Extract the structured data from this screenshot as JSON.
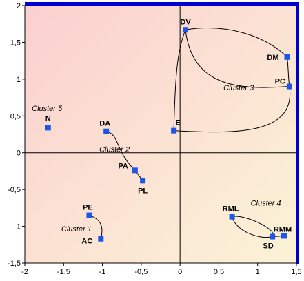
{
  "chart_data": {
    "type": "scatter",
    "xlim": [
      -2,
      1.5
    ],
    "ylim": [
      -1.5,
      2
    ],
    "x_ticks": [
      "-2",
      "-1,5",
      "-1",
      "-0,5",
      "0",
      "0,5",
      "1",
      "1,5"
    ],
    "y_ticks": [
      "2",
      "1,5",
      "1",
      "0,5",
      "0",
      "-0,5",
      "-1",
      "-1,5"
    ],
    "x_tick_values": [
      -2,
      -1.5,
      -1,
      -0.5,
      0,
      0.5,
      1,
      1.5
    ],
    "y_tick_values": [
      2,
      1.5,
      1,
      0.5,
      0,
      -0.5,
      -1,
      -1.5
    ],
    "grid": false,
    "marker_color": "#1f55e6",
    "background_gradient": [
      "#fbd0d0",
      "#fbf3d6"
    ],
    "points": [
      {
        "label": "DV",
        "x": 0.07,
        "y": 1.67
      },
      {
        "label": "DM",
        "x": 1.38,
        "y": 1.3
      },
      {
        "label": "PC",
        "x": 1.41,
        "y": 0.9
      },
      {
        "label": "E",
        "x": -0.08,
        "y": 0.3
      },
      {
        "label": "N",
        "x": -1.7,
        "y": 0.34
      },
      {
        "label": "DA",
        "x": -0.95,
        "y": 0.29
      },
      {
        "label": "PA",
        "x": -0.58,
        "y": -0.24
      },
      {
        "label": "PL",
        "x": -0.48,
        "y": -0.38
      },
      {
        "label": "PE",
        "x": -1.17,
        "y": -0.85
      },
      {
        "label": "AC",
        "x": -1.02,
        "y": -1.17
      },
      {
        "label": "RML",
        "x": 0.67,
        "y": -0.87
      },
      {
        "label": "SD",
        "x": 1.19,
        "y": -1.14
      },
      {
        "label": "RMM",
        "x": 1.34,
        "y": -1.13
      }
    ],
    "clusters": [
      {
        "label": "Cluster 1",
        "x": -1.53,
        "y": -1.07
      },
      {
        "label": "Cluster 2",
        "x": -1.04,
        "y": 0.01
      },
      {
        "label": "Cluster 3",
        "x": 0.56,
        "y": 0.85
      },
      {
        "label": "Cluster 4",
        "x": 0.91,
        "y": -0.72
      },
      {
        "label": "Cluster 5",
        "x": -1.91,
        "y": 0.57
      }
    ]
  }
}
